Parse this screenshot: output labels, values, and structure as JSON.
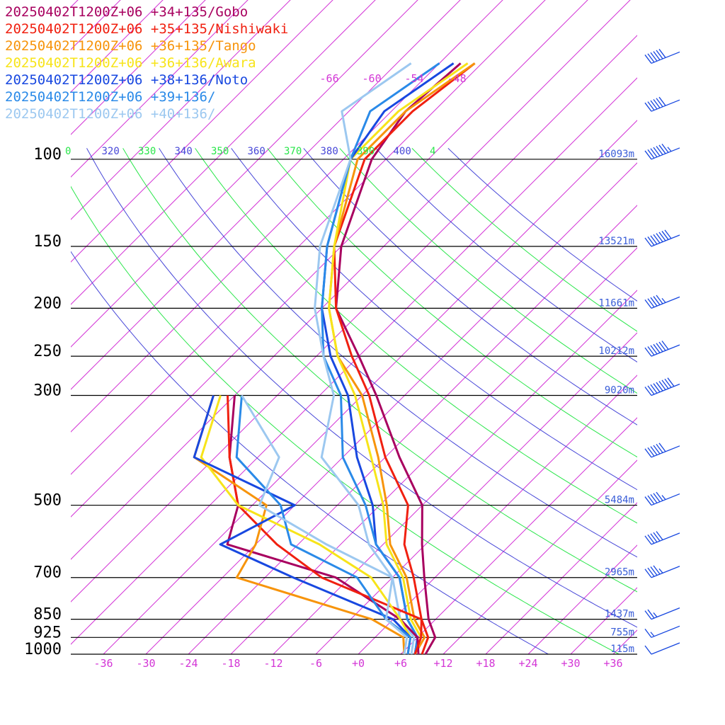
{
  "chart_data": {
    "type": "line",
    "title": "",
    "xlabel": "",
    "ylabel": "",
    "legend": [
      {
        "label": "20250402T1200Z+06 +34+135/Gobo",
        "color": "#a8005f"
      },
      {
        "label": "20250402T1200Z+06 +35+135/Nishiwaki",
        "color": "#f02010"
      },
      {
        "label": "20250402T1200Z+06 +36+135/Tango",
        "color": "#f7940b"
      },
      {
        "label": "20250402T1200Z+06 +36+136/Awara",
        "color": "#f7e41a"
      },
      {
        "label": "20250402T1200Z+06 +38+136/Noto",
        "color": "#1848e0"
      },
      {
        "label": "20250402T1200Z+06 +39+136/",
        "color": "#2a8ae8"
      },
      {
        "label": "20250402T1200Z+06 +40+136/",
        "color": "#9cc8f0"
      }
    ],
    "pressure_levels": [
      {
        "p": 100,
        "label": "100",
        "height": "16093m"
      },
      {
        "p": 150,
        "label": "150",
        "height": "13521m"
      },
      {
        "p": 200,
        "label": "200",
        "height": "11661m"
      },
      {
        "p": 250,
        "label": "250",
        "height": "10212m"
      },
      {
        "p": 300,
        "label": "300",
        "height": "9020m"
      },
      {
        "p": 500,
        "label": "500",
        "height": "5484m"
      },
      {
        "p": 700,
        "label": "700",
        "height": "2965m"
      },
      {
        "p": 850,
        "label": "850",
        "height": "1437m"
      },
      {
        "p": 925,
        "label": "925",
        "height": "755m"
      },
      {
        "p": 1000,
        "label": "1000",
        "height": "115m"
      }
    ],
    "x_ticks": [
      "-36",
      "-30",
      "-24",
      "-18",
      "-12",
      "-6",
      "+0",
      "+6",
      "+12",
      "+18",
      "+24",
      "+30",
      "+36"
    ],
    "upper_isotherm_labels": [
      "-66",
      "-60",
      "-54",
      "-48"
    ],
    "theta_labels": [
      "0",
      "320",
      "330",
      "340",
      "350",
      "360",
      "370",
      "380",
      "390",
      "400",
      "4"
    ],
    "theta_colors": [
      "#29e64a",
      "#4747d8",
      "#29e64a",
      "#4747d8",
      "#29e64a",
      "#4747d8",
      "#29e64a",
      "#4747d8",
      "#29e64a",
      "#4747d8",
      "#29e64a"
    ],
    "wind_barbs": [
      {
        "p": 64,
        "speed_kt": 60
      },
      {
        "p": 80,
        "speed_kt": 60
      },
      {
        "p": 100,
        "speed_kt": 75
      },
      {
        "p": 150,
        "speed_kt": 80
      },
      {
        "p": 200,
        "speed_kt": 55
      },
      {
        "p": 250,
        "speed_kt": 70
      },
      {
        "p": 300,
        "speed_kt": 90
      },
      {
        "p": 400,
        "speed_kt": 60
      },
      {
        "p": 500,
        "speed_kt": 55
      },
      {
        "p": 600,
        "speed_kt": 50
      },
      {
        "p": 700,
        "speed_kt": 45
      },
      {
        "p": 850,
        "speed_kt": 25
      },
      {
        "p": 925,
        "speed_kt": 15
      },
      {
        "p": 1000,
        "speed_kt": 10
      }
    ],
    "series": [
      {
        "name": "20250402T1200Z+06 +34+135/Gobo",
        "color": "#a8005f",
        "kind": "temperature",
        "points": [
          [
            1000,
            9.5
          ],
          [
            925,
            8.5
          ],
          [
            850,
            5
          ],
          [
            700,
            -1.5
          ],
          [
            600,
            -6.5
          ],
          [
            500,
            -12
          ],
          [
            400,
            -22
          ],
          [
            300,
            -34
          ],
          [
            250,
            -42
          ],
          [
            200,
            -52
          ],
          [
            150,
            -60
          ],
          [
            100,
            -68
          ],
          [
            80,
            -70
          ],
          [
            64,
            -69
          ]
        ]
      },
      {
        "name": "20250402T1200Z+06 +35+135/Nishiwaki",
        "color": "#f02010",
        "kind": "temperature",
        "points": [
          [
            1000,
            9
          ],
          [
            925,
            7.5
          ],
          [
            850,
            4
          ],
          [
            700,
            -3
          ],
          [
            600,
            -9
          ],
          [
            500,
            -14
          ],
          [
            400,
            -24
          ],
          [
            300,
            -35
          ],
          [
            250,
            -43
          ],
          [
            200,
            -52
          ],
          [
            150,
            -61
          ],
          [
            100,
            -69
          ],
          [
            80,
            -69
          ],
          [
            64,
            -67
          ]
        ]
      },
      {
        "name": "20250402T1200Z+06 +36+135/Tango",
        "color": "#f7940b",
        "kind": "temperature",
        "points": [
          [
            1000,
            8
          ],
          [
            925,
            7
          ],
          [
            850,
            3
          ],
          [
            700,
            -4
          ],
          [
            600,
            -11
          ],
          [
            500,
            -17
          ],
          [
            400,
            -25
          ],
          [
            300,
            -36
          ],
          [
            250,
            -45
          ],
          [
            200,
            -53
          ],
          [
            150,
            -61
          ],
          [
            100,
            -70
          ],
          [
            80,
            -70
          ],
          [
            64,
            -67
          ]
        ]
      },
      {
        "name": "20250402T1200Z+06 +36+136/Awara",
        "color": "#f7e41a",
        "kind": "temperature",
        "points": [
          [
            1000,
            8
          ],
          [
            925,
            6.5
          ],
          [
            850,
            2.5
          ],
          [
            700,
            -4.5
          ],
          [
            600,
            -11.5
          ],
          [
            500,
            -17.5
          ],
          [
            400,
            -26
          ],
          [
            300,
            -37
          ],
          [
            250,
            -45
          ],
          [
            200,
            -53
          ],
          [
            150,
            -61
          ],
          [
            100,
            -71
          ],
          [
            80,
            -71
          ],
          [
            64,
            -68
          ]
        ]
      },
      {
        "name": "20250402T1200Z+06 +38+136/Noto",
        "color": "#1848e0",
        "kind": "temperature",
        "points": [
          [
            1000,
            8
          ],
          [
            925,
            6
          ],
          [
            850,
            2
          ],
          [
            700,
            -5
          ],
          [
            600,
            -13
          ],
          [
            500,
            -19
          ],
          [
            400,
            -28
          ],
          [
            300,
            -38
          ],
          [
            250,
            -46
          ],
          [
            200,
            -54
          ],
          [
            150,
            -62
          ],
          [
            100,
            -71
          ],
          [
            80,
            -73
          ],
          [
            64,
            -70
          ]
        ]
      },
      {
        "name": "20250402T1200Z+06 +39+136/",
        "color": "#2a8ae8",
        "kind": "temperature",
        "points": [
          [
            1000,
            8
          ],
          [
            925,
            6
          ],
          [
            850,
            2
          ],
          [
            700,
            -5
          ],
          [
            600,
            -13
          ],
          [
            500,
            -20
          ],
          [
            400,
            -30
          ],
          [
            300,
            -39
          ],
          [
            250,
            -47
          ],
          [
            200,
            -54
          ],
          [
            150,
            -62
          ],
          [
            100,
            -71
          ],
          [
            80,
            -75
          ],
          [
            64,
            -72
          ]
        ]
      },
      {
        "name": "20250402T1200Z+06 +40+136/",
        "color": "#9cc8f0",
        "kind": "temperature",
        "points": [
          [
            1000,
            7.5
          ],
          [
            925,
            5.5
          ],
          [
            850,
            1
          ],
          [
            700,
            -6
          ],
          [
            600,
            -14
          ],
          [
            500,
            -21
          ],
          [
            400,
            -33
          ],
          [
            300,
            -40
          ],
          [
            250,
            -47
          ],
          [
            200,
            -55
          ],
          [
            150,
            -63
          ],
          [
            100,
            -71
          ],
          [
            80,
            -79
          ],
          [
            64,
            -76
          ]
        ]
      },
      {
        "name": "20250402T1200Z+06 +34+135/Gobo",
        "color": "#a8005f",
        "kind": "dewpoint",
        "points": [
          [
            1000,
            8.5
          ],
          [
            925,
            6
          ],
          [
            850,
            1
          ],
          [
            700,
            -14
          ],
          [
            600,
            -34
          ],
          [
            500,
            -38
          ],
          [
            400,
            -46
          ],
          [
            300,
            -54
          ]
        ]
      },
      {
        "name": "20250402T1200Z+06 +35+135/Nishiwaki",
        "color": "#f02010",
        "kind": "dewpoint",
        "points": [
          [
            1000,
            8
          ],
          [
            925,
            6.5
          ],
          [
            850,
            4
          ],
          [
            700,
            -16
          ],
          [
            600,
            -27
          ],
          [
            500,
            -38
          ],
          [
            400,
            -46
          ],
          [
            300,
            -55
          ]
        ]
      },
      {
        "name": "20250402T1200Z+06 +36+135/Tango",
        "color": "#f7940b",
        "kind": "dewpoint",
        "points": [
          [
            1000,
            6.5
          ],
          [
            925,
            4
          ],
          [
            850,
            -3
          ],
          [
            700,
            -28
          ],
          [
            600,
            -30
          ],
          [
            500,
            -34
          ],
          [
            400,
            -51
          ],
          [
            300,
            -57
          ]
        ]
      },
      {
        "name": "20250402T1200Z+06 +36+136/Awara",
        "color": "#f7e41a",
        "kind": "dewpoint",
        "points": [
          [
            1000,
            7
          ],
          [
            925,
            5
          ],
          [
            850,
            1
          ],
          [
            700,
            -9
          ],
          [
            600,
            -21
          ],
          [
            500,
            -38
          ],
          [
            400,
            -50
          ],
          [
            300,
            -56
          ]
        ]
      },
      {
        "name": "20250402T1200Z+06 +38+136/Noto",
        "color": "#1848e0",
        "kind": "dewpoint",
        "points": [
          [
            1000,
            7
          ],
          [
            925,
            5
          ],
          [
            850,
            0
          ],
          [
            700,
            -20
          ],
          [
            600,
            -35
          ],
          [
            500,
            -30
          ],
          [
            400,
            -51
          ],
          [
            300,
            -57
          ]
        ]
      },
      {
        "name": "20250402T1200Z+06 +39+136/",
        "color": "#2a8ae8",
        "kind": "dewpoint",
        "points": [
          [
            1000,
            7
          ],
          [
            925,
            5
          ],
          [
            850,
            -1
          ],
          [
            700,
            -11
          ],
          [
            600,
            -25
          ],
          [
            500,
            -32
          ],
          [
            400,
            -45
          ],
          [
            300,
            -53
          ]
        ]
      },
      {
        "name": "20250402T1200Z+06 +40+136/",
        "color": "#9cc8f0",
        "kind": "dewpoint",
        "points": [
          [
            1000,
            6.5
          ],
          [
            925,
            4.5
          ],
          [
            850,
            -1
          ],
          [
            700,
            -6
          ],
          [
            600,
            -20
          ],
          [
            500,
            -35
          ],
          [
            400,
            -39
          ],
          [
            300,
            -53
          ]
        ]
      }
    ]
  }
}
